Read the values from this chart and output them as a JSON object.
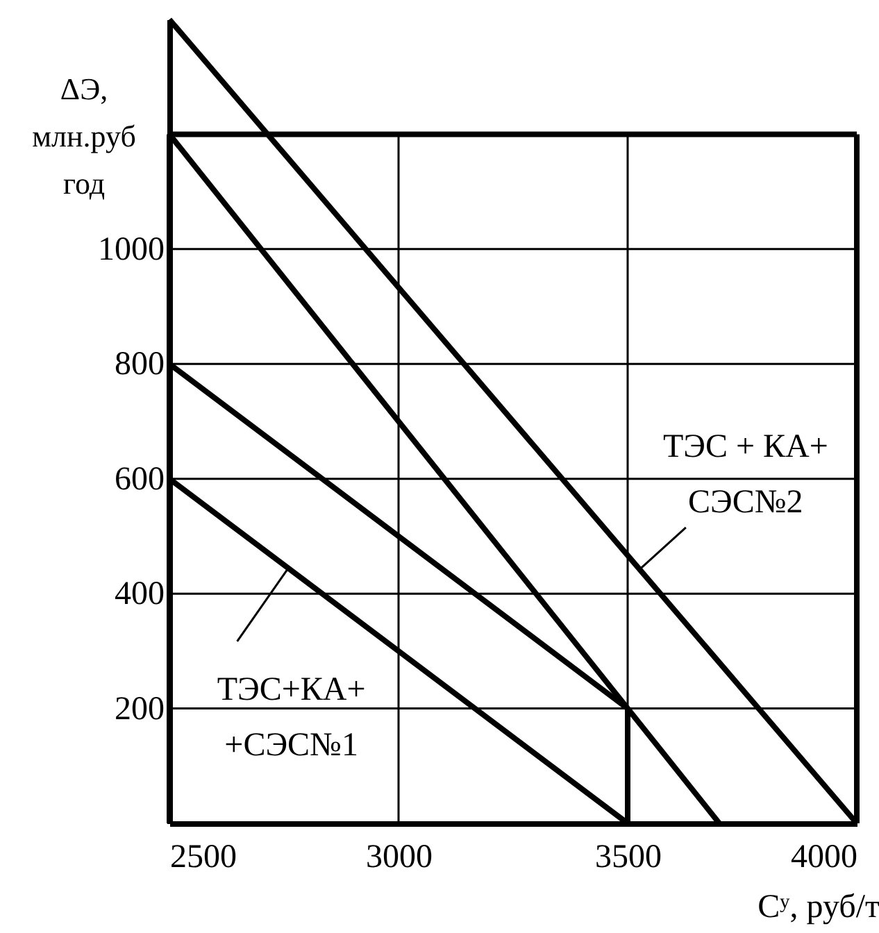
{
  "chart_data": {
    "type": "line",
    "xlabel": "Cʸ, руб/т",
    "ylabel": "ΔЭ,\nмлн.руб\nгод",
    "xlim": [
      2500,
      4000
    ],
    "ylim": [
      0,
      1400
    ],
    "xticks": [
      2500,
      3000,
      3500,
      4000
    ],
    "yticks": [
      200,
      400,
      600,
      800,
      1000
    ],
    "ref_lines": [
      {
        "axis": "y",
        "value": 1200,
        "color": "#000000"
      }
    ],
    "grid": true,
    "marker": "none",
    "line_style": "solid",
    "series": [
      {
        "color": "#000000",
        "x": [
          2500,
          3500
        ],
        "values": [
          800,
          200
        ]
      },
      {
        "color": "#000000",
        "x": [
          2500,
          3500
        ],
        "values": [
          600,
          0
        ]
      },
      {
        "color": "#000000",
        "x": [
          3500,
          3500
        ],
        "values": [
          0,
          200
        ]
      },
      {
        "color": "#000000",
        "x": [
          2500,
          4000
        ],
        "values": [
          1400,
          0
        ]
      },
      {
        "color": "#000000",
        "x": [
          2500,
          3700
        ],
        "values": [
          1200,
          0
        ]
      }
    ],
    "annotations": [
      {
        "text": "ТЭС+КА+\n+СЭС№1",
        "x": 2760,
        "y": 445
      },
      {
        "text": "ТЭС + КА+\nСЭС№2",
        "x": 3530,
        "y": 445
      }
    ]
  }
}
